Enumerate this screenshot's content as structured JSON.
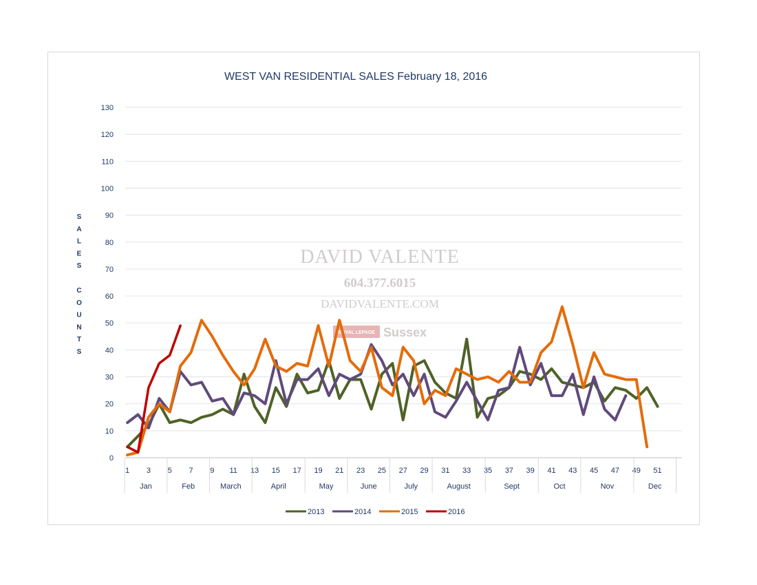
{
  "chart_data": {
    "type": "line",
    "title": "WEST VAN RESIDENTIAL  SALES February 18, 2016",
    "ylabel": "SALES COUNTS",
    "ylim": [
      0,
      130
    ],
    "yticks": [
      0,
      10,
      20,
      30,
      40,
      50,
      60,
      70,
      80,
      90,
      100,
      110,
      120,
      130
    ],
    "xrange": [
      1,
      53
    ],
    "xticks": [
      "1",
      "3",
      "5",
      "7",
      "9",
      "11",
      "13",
      "15",
      "17",
      "19",
      "21",
      "23",
      "25",
      "27",
      "29",
      "31",
      "33",
      "35",
      "37",
      "39",
      "41",
      "43",
      "45",
      "47",
      "49",
      "51"
    ],
    "months": [
      {
        "label": "Jan",
        "start": 1,
        "end": 4
      },
      {
        "label": "Feb",
        "start": 5,
        "end": 8
      },
      {
        "label": "March",
        "start": 9,
        "end": 12
      },
      {
        "label": "April",
        "start": 13,
        "end": 17
      },
      {
        "label": "May",
        "start": 18,
        "end": 21
      },
      {
        "label": "June",
        "start": 22,
        "end": 25
      },
      {
        "label": "July",
        "start": 26,
        "end": 29
      },
      {
        "label": "August",
        "start": 30,
        "end": 34
      },
      {
        "label": "Sept",
        "start": 35,
        "end": 39
      },
      {
        "label": "Oct",
        "start": 40,
        "end": 43
      },
      {
        "label": "Nov",
        "start": 44,
        "end": 48
      },
      {
        "label": "Dec",
        "start": 49,
        "end": 52
      }
    ],
    "series": [
      {
        "name": "2013",
        "color": "#4f6228",
        "values": [
          4,
          8,
          12,
          20,
          13,
          14,
          13,
          15,
          16,
          18,
          16,
          31,
          19,
          13,
          26,
          19,
          31,
          24,
          25,
          36,
          22,
          29,
          29,
          18,
          31,
          35,
          14,
          34,
          36,
          28,
          24,
          22,
          44,
          15,
          22,
          23,
          26,
          32,
          31,
          29,
          33,
          28,
          27,
          26,
          28,
          21,
          26,
          25,
          22,
          26,
          19
        ]
      },
      {
        "name": "2014",
        "color": "#604a7b",
        "values": [
          13,
          16,
          11,
          22,
          17,
          32,
          27,
          28,
          21,
          22,
          16,
          24,
          23,
          20,
          36,
          20,
          29,
          29,
          33,
          23,
          31,
          29,
          31,
          42,
          36,
          27,
          31,
          23,
          31,
          17,
          15,
          21,
          28,
          21,
          14,
          25,
          26,
          41,
          27,
          35,
          23,
          23,
          31,
          16,
          30,
          18,
          14,
          23
        ]
      },
      {
        "name": "2015",
        "color": "#e46c0a",
        "values": [
          1,
          2,
          15,
          20,
          17,
          34,
          39,
          51,
          45,
          38,
          32,
          27,
          33,
          44,
          34,
          32,
          35,
          34,
          49,
          34,
          51,
          36,
          32,
          41,
          26,
          23,
          41,
          36,
          20,
          25,
          23,
          33,
          31,
          29,
          30,
          28,
          32,
          28,
          28,
          39,
          43,
          56,
          42,
          26,
          39,
          31,
          30,
          29,
          29,
          4
        ]
      },
      {
        "name": "2016",
        "color": "#c00000",
        "values": [
          4,
          2,
          26,
          35,
          38,
          49
        ]
      }
    ]
  },
  "watermark": {
    "name": "DAVID VALENTE",
    "phone": "604.377.6015",
    "website": "DAVIDVALENTE.COM",
    "brand_badge": "ROYAL LEPAGE",
    "brand": "Sussex"
  }
}
